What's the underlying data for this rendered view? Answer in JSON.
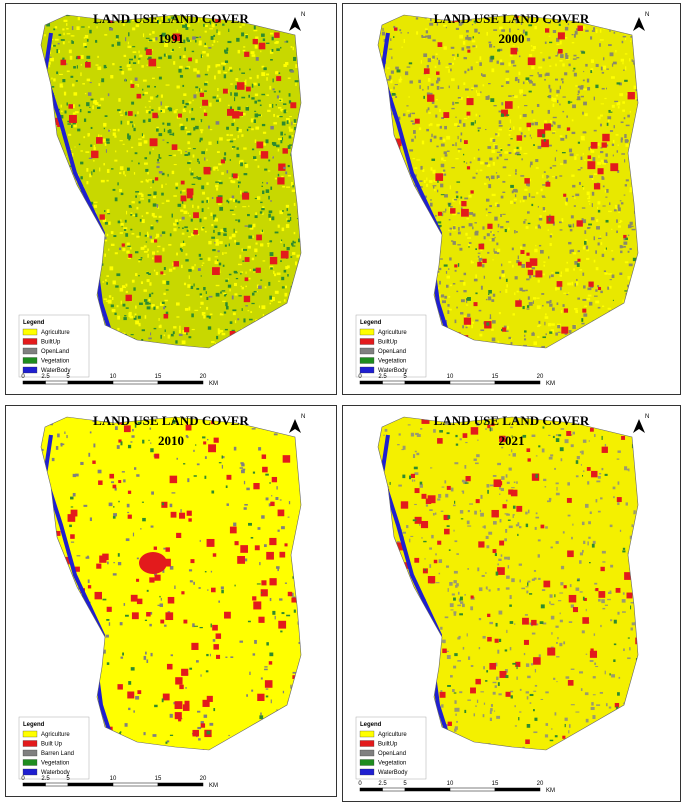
{
  "panels": [
    {
      "title": "LAND USE LAND COVER",
      "year": "1991",
      "north": "N",
      "legend_title": "Legend",
      "legend": [
        {
          "name": "Agriculture",
          "color": "#ffff00"
        },
        {
          "name": "BuiltUp",
          "color": "#e31a1c"
        },
        {
          "name": "OpenLand",
          "color": "#808080"
        },
        {
          "name": "Vegetation",
          "color": "#1e8c1e"
        },
        {
          "name": "WaterBody",
          "color": "#1f1fd0"
        }
      ],
      "scale": [
        0,
        2.5,
        5,
        10,
        15,
        20
      ],
      "scale_unit": "KM"
    },
    {
      "title": "LAND USE LAND COVER",
      "year": "2000",
      "north": "N",
      "legend_title": "Legend",
      "legend": [
        {
          "name": "Agriculture",
          "color": "#ffff00"
        },
        {
          "name": "BuiltUp",
          "color": "#e31a1c"
        },
        {
          "name": "OpenLand",
          "color": "#808080"
        },
        {
          "name": "Vegetation",
          "color": "#1e8c1e"
        },
        {
          "name": "WaterBody",
          "color": "#1f1fd0"
        }
      ],
      "scale": [
        0,
        2.5,
        5,
        10,
        15,
        20
      ],
      "scale_unit": "KM"
    },
    {
      "title": "LAND USE LAND COVER",
      "year": "2010",
      "north": "N",
      "legend_title": "Legend",
      "legend": [
        {
          "name": "Agriculture",
          "color": "#ffff00"
        },
        {
          "name": "Built Up",
          "color": "#e31a1c"
        },
        {
          "name": "Barren Land",
          "color": "#808080"
        },
        {
          "name": "Vegetation",
          "color": "#1e8c1e"
        },
        {
          "name": "Waterbody",
          "color": "#1f1fd0"
        }
      ],
      "scale": [
        0,
        2.5,
        5,
        10,
        15,
        20
      ],
      "scale_unit": "KM"
    },
    {
      "title": "LAND USE LAND COVER",
      "year": "2021",
      "north": "N",
      "legend_title": "Legend",
      "legend": [
        {
          "name": "Agriculture",
          "color": "#ffff00"
        },
        {
          "name": "BuiltUp",
          "color": "#e31a1c"
        },
        {
          "name": "OpenLand",
          "color": "#808080"
        },
        {
          "name": "Vegetation",
          "color": "#1e8c1e"
        },
        {
          "name": "WaterBody",
          "color": "#1f1fd0"
        }
      ],
      "scale": [
        0,
        2.5,
        5,
        10,
        15,
        20
      ],
      "scale_unit": "KM"
    }
  ]
}
